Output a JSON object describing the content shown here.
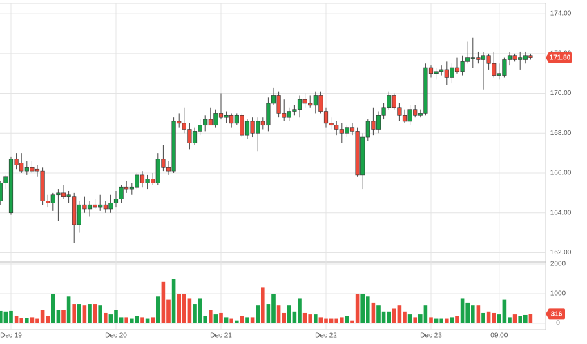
{
  "chart_data": {
    "type": "candlestick",
    "categories": [
      null,
      null,
      "Dec 19",
      null,
      null,
      null,
      null,
      null,
      null,
      null,
      null,
      null,
      null,
      null,
      null,
      null,
      null,
      null,
      null,
      null,
      null,
      null,
      "Dec 20",
      null,
      null,
      null,
      null,
      null,
      null,
      null,
      null,
      null,
      null,
      null,
      null,
      null,
      null,
      null,
      null,
      null,
      null,
      null,
      "Dec 21",
      null,
      null,
      null,
      null,
      null,
      null,
      null,
      null,
      null,
      null,
      null,
      null,
      null,
      null,
      null,
      null,
      null,
      null,
      null,
      "Dec 22",
      null,
      null,
      null,
      null,
      null,
      null,
      null,
      null,
      null,
      null,
      null,
      null,
      null,
      null,
      null,
      null,
      null,
      null,
      null,
      "Dec 23",
      null,
      null,
      null,
      null,
      null,
      null,
      null,
      null,
      null,
      null,
      null,
      null,
      "09:00",
      null,
      null,
      null,
      null,
      null,
      null
    ],
    "open": [
      164.6,
      165.5,
      164.0,
      166.7,
      166.5,
      166.1,
      166.3,
      166.2,
      166.1,
      164.6,
      164.5,
      164.9,
      165.0,
      164.8,
      164.8,
      163.4,
      164.4,
      164.2,
      164.4,
      164.3,
      164.4,
      164.2,
      164.5,
      164.7,
      165.3,
      165.2,
      165.3,
      165.9,
      165.5,
      165.7,
      165.5,
      166.7,
      166.3,
      166.1,
      168.6,
      168.5,
      168.2,
      167.5,
      168.1,
      168.4,
      168.7,
      168.4,
      169.0,
      168.8,
      168.9,
      168.5,
      168.9,
      167.9,
      168.6,
      168.0,
      168.6,
      168.4,
      169.5,
      169.9,
      169.0,
      168.8,
      169.1,
      169.2,
      169.7,
      169.5,
      169.4,
      169.9,
      169.1,
      168.5,
      168.4,
      168.2,
      168.0,
      168.3,
      168.1,
      165.9,
      167.8,
      168.6,
      168.2,
      168.9,
      169.3,
      169.9,
      169.3,
      168.9,
      168.6,
      169.2,
      168.9,
      169.0,
      171.3,
      171.0,
      171.1,
      171.2,
      170.8,
      171.3,
      171.1,
      171.6,
      171.8,
      171.8,
      171.7,
      171.9,
      171.5,
      170.9,
      170.9,
      171.7,
      171.9,
      171.7,
      171.7,
      171.9
    ],
    "high": [
      165.6,
      165.9,
      166.8,
      167.0,
      167.0,
      166.6,
      166.6,
      166.4,
      166.3,
      164.9,
      165.0,
      165.2,
      165.4,
      165.1,
      165.0,
      164.6,
      164.8,
      164.6,
      164.7,
      164.9,
      164.6,
      164.9,
      165.1,
      165.4,
      165.6,
      165.5,
      166.0,
      166.1,
      165.9,
      166.0,
      167.0,
      167.4,
      166.6,
      168.8,
      169.0,
      169.3,
      168.5,
      168.3,
      168.7,
      168.9,
      169.3,
      169.2,
      170.0,
      169.1,
      169.0,
      169.0,
      169.0,
      168.7,
      168.8,
      168.8,
      168.8,
      169.8,
      170.3,
      170.1,
      169.7,
      169.3,
      169.4,
      169.9,
      170.0,
      169.9,
      170.1,
      170.1,
      169.3,
      168.8,
      168.6,
      168.5,
      168.4,
      168.5,
      168.3,
      168.0,
      168.7,
      169.3,
      169.1,
      169.5,
      170.1,
      170.0,
      169.5,
      169.2,
      169.4,
      169.4,
      169.2,
      171.5,
      171.4,
      171.3,
      171.4,
      171.6,
      171.5,
      171.8,
      171.9,
      172.6,
      172.8,
      172.1,
      172.1,
      172.0,
      172.1,
      171.5,
      171.8,
      172.1,
      172.0,
      172.1,
      172.1,
      172.0
    ],
    "low": [
      164.4,
      165.2,
      163.9,
      166.2,
      166.0,
      165.9,
      166.0,
      165.8,
      164.4,
      164.3,
      164.1,
      163.6,
      164.7,
      164.5,
      162.5,
      163.0,
      164.0,
      163.8,
      164.2,
      164.1,
      164.0,
      164.0,
      164.3,
      164.5,
      165.0,
      164.9,
      165.2,
      165.3,
      165.2,
      165.4,
      165.4,
      166.1,
      165.9,
      166.0,
      168.3,
      168.0,
      167.2,
      167.4,
      167.9,
      168.1,
      168.4,
      168.3,
      168.7,
      168.5,
      168.3,
      168.4,
      167.8,
      167.7,
      167.8,
      167.1,
      168.2,
      168.1,
      169.4,
      168.8,
      168.6,
      168.6,
      168.9,
      168.8,
      169.3,
      169.3,
      169.0,
      169.0,
      168.3,
      168.2,
      167.9,
      167.5,
      167.8,
      167.9,
      165.8,
      165.2,
      167.6,
      167.9,
      168.0,
      168.7,
      169.2,
      169.2,
      168.6,
      168.5,
      168.4,
      168.8,
      168.8,
      168.9,
      170.8,
      170.7,
      170.9,
      170.4,
      170.5,
      171.0,
      170.9,
      171.5,
      171.3,
      171.5,
      170.2,
      171.2,
      170.8,
      170.7,
      170.8,
      171.4,
      171.6,
      171.2,
      171.5,
      171.7
    ],
    "close": [
      165.5,
      165.8,
      166.7,
      166.4,
      166.1,
      166.3,
      166.1,
      166.1,
      164.6,
      164.5,
      164.9,
      165.0,
      164.8,
      164.9,
      163.4,
      164.4,
      164.2,
      164.4,
      164.3,
      164.4,
      164.2,
      164.5,
      164.7,
      165.3,
      165.2,
      165.3,
      165.9,
      165.5,
      165.7,
      165.5,
      166.7,
      166.3,
      166.1,
      168.6,
      168.5,
      168.2,
      167.5,
      168.1,
      168.4,
      168.7,
      168.4,
      169.0,
      168.8,
      168.9,
      168.5,
      168.9,
      167.9,
      168.6,
      168.0,
      168.6,
      168.4,
      169.5,
      169.9,
      169.0,
      168.8,
      169.1,
      169.2,
      169.7,
      169.5,
      169.4,
      169.9,
      169.1,
      168.5,
      168.4,
      168.2,
      168.0,
      168.3,
      168.1,
      165.9,
      167.8,
      168.6,
      168.2,
      168.9,
      169.3,
      169.9,
      169.3,
      168.9,
      168.6,
      169.2,
      168.9,
      169.0,
      171.3,
      171.0,
      171.1,
      171.2,
      170.8,
      171.3,
      171.1,
      171.6,
      171.8,
      171.8,
      171.7,
      171.9,
      171.5,
      170.9,
      171.0,
      171.7,
      171.9,
      171.7,
      171.8,
      171.9,
      171.8
    ],
    "volume": [
      420,
      400,
      420,
      250,
      180,
      170,
      200,
      150,
      460,
      250,
      1000,
      450,
      450,
      900,
      650,
      650,
      600,
      650,
      650,
      600,
      350,
      300,
      450,
      200,
      200,
      150,
      250,
      200,
      150,
      200,
      900,
      1400,
      800,
      1500,
      1000,
      1000,
      850,
      650,
      850,
      250,
      450,
      300,
      350,
      200,
      150,
      100,
      250,
      200,
      200,
      600,
      1200,
      650,
      1000,
      600,
      350,
      600,
      400,
      850,
      350,
      300,
      300,
      200,
      150,
      150,
      150,
      200,
      250,
      100,
      1000,
      1000,
      900,
      700,
      600,
      400,
      400,
      500,
      600,
      400,
      300,
      200,
      300,
      600,
      200,
      150,
      150,
      150,
      200,
      250,
      850,
      700,
      600,
      600,
      350,
      400,
      350,
      300,
      800,
      200,
      300,
      250,
      280,
      316
    ],
    "last_price_label": "171.80",
    "up_color": "#1aa34a",
    "down_color": "#ee4b3b",
    "ylim": [
      161.6,
      174.35
    ],
    "yticks": [
      {
        "value": 162,
        "label": "162.00"
      },
      {
        "value": 164,
        "label": "164.00"
      },
      {
        "value": 166,
        "label": "166.00"
      },
      {
        "value": 168,
        "label": "168.00"
      },
      {
        "value": 170,
        "label": "170.00"
      },
      {
        "value": 172,
        "label": "172.00"
      },
      {
        "value": 174,
        "label": "174.00"
      }
    ],
    "volume_ylim": [
      0,
      2000
    ],
    "volume_yticks": [
      0,
      1000,
      2000
    ],
    "grid": true
  }
}
